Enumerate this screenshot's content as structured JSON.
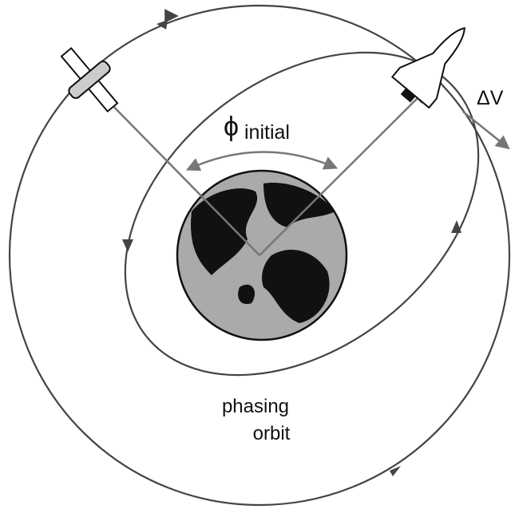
{
  "angle_label": {
    "symbol": "ϕ",
    "subscript": "initial"
  },
  "burn_label": "ΔV",
  "orbit_label": [
    "phasing",
    "orbit"
  ]
}
